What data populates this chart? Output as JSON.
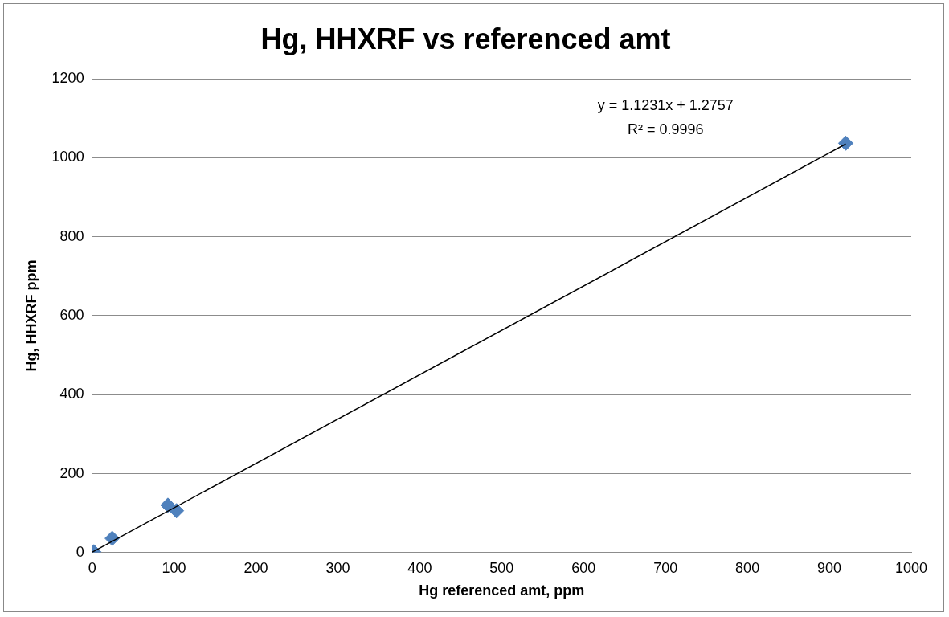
{
  "chart_data": {
    "type": "scatter",
    "title": "Hg, HHXRF vs referenced amt",
    "xlabel": "Hg referenced amt, ppm",
    "ylabel": "Hg, HHXRF ppm",
    "series": [
      {
        "type": "scatter",
        "color": "#4f81bd",
        "x": [
          2,
          24.5,
          92.5,
          103,
          920
        ],
        "values": [
          2,
          36,
          120,
          106,
          1037
        ],
        "marker": "diamond"
      },
      {
        "type": "line",
        "color": "#000000",
        "x": [
          0,
          920
        ],
        "values": [
          1,
          1035
        ],
        "marker": "none"
      }
    ],
    "annotations": [
      "y = 1.1231x + 1.2757",
      "R² = 0.9996"
    ],
    "xlim": [
      0,
      1000
    ],
    "xticks": [
      0,
      100,
      200,
      300,
      400,
      500,
      600,
      700,
      800,
      900,
      1000
    ],
    "ylim": [
      0,
      1200
    ],
    "yticks": [
      0,
      200,
      400,
      600,
      800,
      1000,
      1200
    ],
    "grid": "y",
    "legend": false
  }
}
